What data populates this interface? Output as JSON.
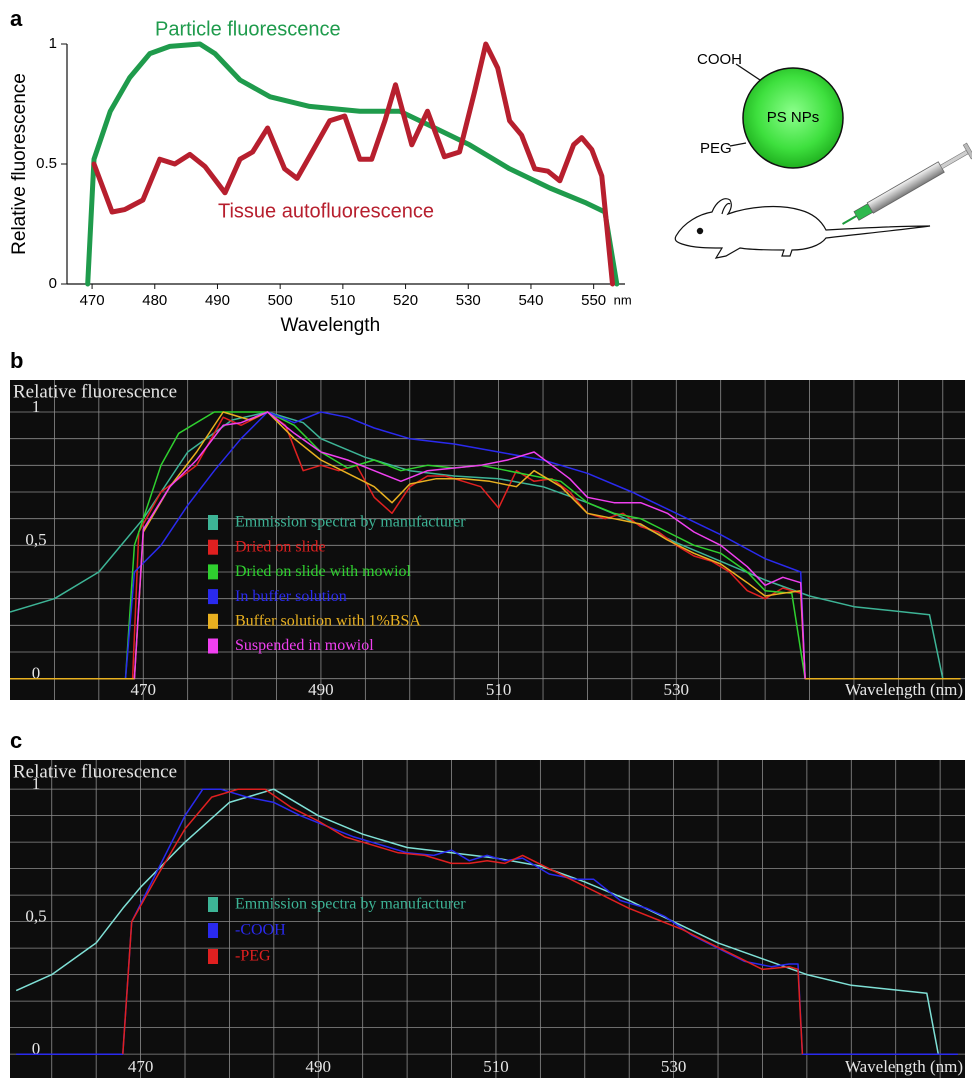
{
  "chart_data": [
    {
      "type": "line",
      "panel": "a",
      "ylabel": "Relative fluorescence",
      "xlabel": "Wavelength",
      "xunit": "nm",
      "xlim": [
        466,
        555
      ],
      "ylim": [
        0,
        1
      ],
      "xticks": [
        470,
        480,
        490,
        500,
        510,
        520,
        530,
        540,
        550
      ],
      "yticks": [
        0,
        0.5,
        1
      ],
      "grid": false,
      "legend": false,
      "series": [
        {
          "name": "Particle fluorescence",
          "color": "#1f9b4c",
          "x": [
            469.3,
            470.3,
            472.9,
            476,
            479.2,
            482.4,
            487.2,
            489.6,
            493.6,
            498.4,
            504.7,
            512.7,
            519.1,
            523.9,
            530.2,
            536.6,
            543,
            548.6,
            551.8,
            553.7
          ],
          "values": [
            0,
            0.52,
            0.72,
            0.86,
            0.96,
            0.99,
            1.0,
            0.96,
            0.85,
            0.78,
            0.74,
            0.72,
            0.72,
            0.66,
            0.58,
            0.48,
            0.4,
            0.34,
            0.3,
            0
          ]
        },
        {
          "name": "Tissue autofluorescence",
          "color": "#b71f2e",
          "x": [
            470.3,
            473.2,
            475.2,
            478.1,
            480.8,
            483.2,
            485.6,
            488.0,
            491.2,
            493.6,
            495.6,
            498.0,
            500.7,
            502.7,
            505.1,
            507.9,
            510.3,
            512.7,
            514.6,
            516.7,
            518.4,
            521.0,
            523.5,
            526.2,
            528.6,
            531.0,
            532.8,
            534.7,
            536.6,
            538.5,
            540.6,
            542.7,
            544.6,
            546.8,
            548.1,
            549.7,
            551.3,
            553.0
          ],
          "values": [
            0.5,
            0.3,
            0.31,
            0.35,
            0.52,
            0.5,
            0.54,
            0.49,
            0.38,
            0.52,
            0.55,
            0.65,
            0.48,
            0.44,
            0.55,
            0.68,
            0.7,
            0.52,
            0.52,
            0.68,
            0.83,
            0.58,
            0.72,
            0.53,
            0.55,
            0.8,
            1.0,
            0.9,
            0.68,
            0.62,
            0.48,
            0.47,
            0.43,
            0.58,
            0.61,
            0.56,
            0.45,
            0
          ]
        }
      ]
    },
    {
      "type": "line",
      "panel": "b",
      "ylabel": "Relative fluorescence",
      "xlabel": "Wavelength (nm)",
      "xlim": [
        455,
        562.5
      ],
      "ylim": [
        -0.08,
        1.12
      ],
      "xticks": [
        470,
        490,
        510,
        530
      ],
      "yticks": [
        0,
        {
          "value": 0.5,
          "label": "0,5"
        },
        1
      ],
      "xgrid": [
        460,
        465,
        470,
        475,
        480,
        485,
        490,
        495,
        500,
        505,
        510,
        515,
        520,
        525,
        530,
        535,
        540,
        545,
        550,
        555,
        560
      ],
      "ygrid": [
        0,
        0.1,
        0.2,
        0.3,
        0.4,
        0.5,
        0.6,
        0.7,
        0.8,
        0.9,
        1
      ],
      "grid": true,
      "background": "#0d0d0d",
      "legend": true,
      "series": [
        {
          "name": "Emmission spectra by manufacturer",
          "color": "#3db496",
          "x": [
            455,
            460,
            465,
            468,
            470,
            475,
            480,
            484,
            488,
            490,
            495,
            500,
            505,
            510,
            515,
            520,
            525,
            530,
            535,
            540,
            545,
            550,
            558.5,
            560
          ],
          "values": [
            0.25,
            0.3,
            0.4,
            0.52,
            0.6,
            0.85,
            0.97,
            1.0,
            0.96,
            0.9,
            0.83,
            0.78,
            0.76,
            0.75,
            0.72,
            0.66,
            0.59,
            0.51,
            0.44,
            0.37,
            0.31,
            0.27,
            0.24,
            0
          ]
        },
        {
          "name": "Dried on slide",
          "color": "#e02020",
          "x": [
            468.8,
            469.5,
            472,
            476,
            479,
            481,
            484,
            486,
            488,
            490,
            492,
            494,
            496,
            498,
            500,
            502,
            504,
            506,
            508,
            510,
            512,
            514,
            516,
            518,
            520,
            522,
            524,
            526,
            528,
            530,
            532,
            534,
            536,
            538,
            540,
            542,
            544,
            544.5
          ],
          "values": [
            0,
            0.55,
            0.7,
            0.8,
            0.98,
            0.95,
            1.0,
            0.95,
            0.78,
            0.8,
            0.78,
            0.8,
            0.68,
            0.62,
            0.72,
            0.76,
            0.76,
            0.74,
            0.72,
            0.64,
            0.78,
            0.74,
            0.75,
            0.7,
            0.62,
            0.6,
            0.62,
            0.57,
            0.55,
            0.5,
            0.46,
            0.44,
            0.4,
            0.33,
            0.3,
            0.34,
            0.32,
            0
          ]
        },
        {
          "name": "Dried on slide with mowiol",
          "color": "#2fd02f",
          "x": [
            468,
            469,
            472,
            474,
            478,
            480,
            484,
            487,
            490,
            493,
            496,
            499,
            502,
            505,
            508,
            511,
            514,
            517,
            520,
            523,
            526,
            529,
            532,
            535,
            538,
            540,
            543,
            544.5
          ],
          "values": [
            0,
            0.5,
            0.8,
            0.92,
            1.0,
            1.0,
            1.0,
            0.95,
            0.85,
            0.79,
            0.82,
            0.78,
            0.8,
            0.79,
            0.8,
            0.78,
            0.76,
            0.74,
            0.66,
            0.62,
            0.6,
            0.55,
            0.5,
            0.47,
            0.4,
            0.33,
            0.32,
            0
          ]
        },
        {
          "name": "In buffer solution",
          "color": "#2a2aee",
          "x": [
            468,
            469,
            472,
            475,
            478,
            481,
            484,
            487,
            490,
            493,
            496,
            500,
            505,
            510,
            515,
            520,
            525,
            530,
            535,
            540,
            544,
            544.5
          ],
          "values": [
            0,
            0.4,
            0.5,
            0.65,
            0.78,
            0.9,
            1.0,
            0.96,
            1.0,
            0.98,
            0.94,
            0.9,
            0.88,
            0.85,
            0.82,
            0.77,
            0.7,
            0.62,
            0.54,
            0.45,
            0.4,
            0
          ]
        },
        {
          "name": "Buffer solution with 1%BSA",
          "color": "#e8b020",
          "x": [
            455,
            469,
            470,
            473,
            476,
            479,
            482,
            484,
            487,
            490,
            493,
            496,
            498,
            500,
            503,
            506,
            509,
            512,
            514,
            517,
            520,
            523,
            526,
            529,
            532,
            535,
            538,
            540,
            542,
            544,
            544.5,
            562
          ],
          "values": [
            0,
            0,
            0.55,
            0.72,
            0.85,
            1.0,
            0.97,
            1.0,
            0.9,
            0.82,
            0.77,
            0.72,
            0.66,
            0.73,
            0.75,
            0.75,
            0.74,
            0.72,
            0.78,
            0.72,
            0.62,
            0.6,
            0.58,
            0.52,
            0.47,
            0.43,
            0.36,
            0.31,
            0.32,
            0.33,
            0,
            0
          ]
        },
        {
          "name": "Suspended in mowiol",
          "color": "#f040f0",
          "x": [
            469,
            470,
            473,
            476,
            479,
            481,
            484,
            487,
            490,
            493,
            496,
            499,
            502,
            505,
            508,
            511,
            514,
            516,
            518,
            520,
            523,
            526,
            529,
            532,
            535,
            538,
            540,
            542,
            544,
            544.5
          ],
          "values": [
            0,
            0.56,
            0.72,
            0.82,
            0.95,
            0.96,
            1.0,
            0.92,
            0.85,
            0.82,
            0.78,
            0.74,
            0.78,
            0.79,
            0.8,
            0.82,
            0.85,
            0.8,
            0.75,
            0.68,
            0.66,
            0.66,
            0.62,
            0.55,
            0.5,
            0.42,
            0.35,
            0.38,
            0.36,
            0
          ]
        }
      ]
    },
    {
      "type": "line",
      "panel": "c",
      "ylabel": "Relative fluorescence",
      "xlabel": "Wavelength (nm)",
      "xlim": [
        455.3,
        562.8
      ],
      "ylim": [
        -0.09,
        1.11
      ],
      "xticks": [
        470,
        490,
        510,
        530
      ],
      "yticks": [
        0,
        {
          "value": 0.5,
          "label": "0,5"
        },
        1
      ],
      "xgrid": [
        460,
        465,
        470,
        475,
        480,
        485,
        490,
        495,
        500,
        505,
        510,
        515,
        520,
        525,
        530,
        535,
        540,
        545,
        550,
        555,
        560
      ],
      "ygrid": [
        0,
        0.1,
        0.2,
        0.3,
        0.4,
        0.5,
        0.6,
        0.7,
        0.8,
        0.9,
        1
      ],
      "grid": true,
      "background": "#0d0d0d",
      "legend": true,
      "series": [
        {
          "name": "Emmission spectra by manufacturer",
          "color": "#3db496",
          "line_color": "#7fe0d6",
          "x": [
            456,
            460,
            465,
            468,
            470,
            475,
            480,
            485,
            490,
            495,
            500,
            505,
            510,
            515,
            520,
            525,
            530,
            535,
            540,
            545,
            550,
            558.5,
            559.8
          ],
          "values": [
            0.24,
            0.3,
            0.42,
            0.55,
            0.63,
            0.8,
            0.95,
            1.0,
            0.9,
            0.83,
            0.78,
            0.76,
            0.74,
            0.71,
            0.65,
            0.58,
            0.5,
            0.42,
            0.36,
            0.3,
            0.26,
            0.23,
            0
          ]
        },
        {
          "name": "-COOH",
          "color": "#2a2aee",
          "x": [
            456,
            468,
            469,
            472,
            475,
            477,
            479,
            482,
            485,
            488,
            491,
            494,
            497,
            500,
            503,
            505,
            507,
            509,
            511,
            513,
            516,
            519,
            521,
            524,
            527,
            529,
            532,
            535,
            538,
            541,
            543,
            544,
            544.5,
            562
          ],
          "values": [
            0,
            0,
            0.5,
            0.7,
            0.9,
            1.0,
            1.0,
            0.97,
            0.95,
            0.9,
            0.86,
            0.82,
            0.79,
            0.76,
            0.75,
            0.77,
            0.73,
            0.75,
            0.73,
            0.74,
            0.68,
            0.66,
            0.66,
            0.58,
            0.55,
            0.52,
            0.45,
            0.4,
            0.35,
            0.33,
            0.34,
            0.34,
            0,
            0
          ]
        },
        {
          "name": "-PEG",
          "color": "#e02020",
          "x": [
            468,
            469,
            472,
            475,
            478,
            481,
            484,
            487,
            490,
            493,
            496,
            499,
            502,
            505,
            507,
            509,
            511,
            513,
            516,
            519,
            522,
            525,
            528,
            531,
            534,
            537,
            540,
            543,
            544,
            544.5
          ],
          "values": [
            0,
            0.5,
            0.68,
            0.85,
            0.97,
            1.0,
            1.0,
            0.93,
            0.88,
            0.82,
            0.79,
            0.76,
            0.75,
            0.72,
            0.72,
            0.73,
            0.72,
            0.75,
            0.7,
            0.65,
            0.6,
            0.55,
            0.51,
            0.47,
            0.42,
            0.37,
            0.32,
            0.33,
            0.32,
            0
          ]
        }
      ]
    }
  ],
  "diagram": {
    "particle": "PS NPs",
    "labels": [
      "COOH",
      "PEG"
    ]
  }
}
